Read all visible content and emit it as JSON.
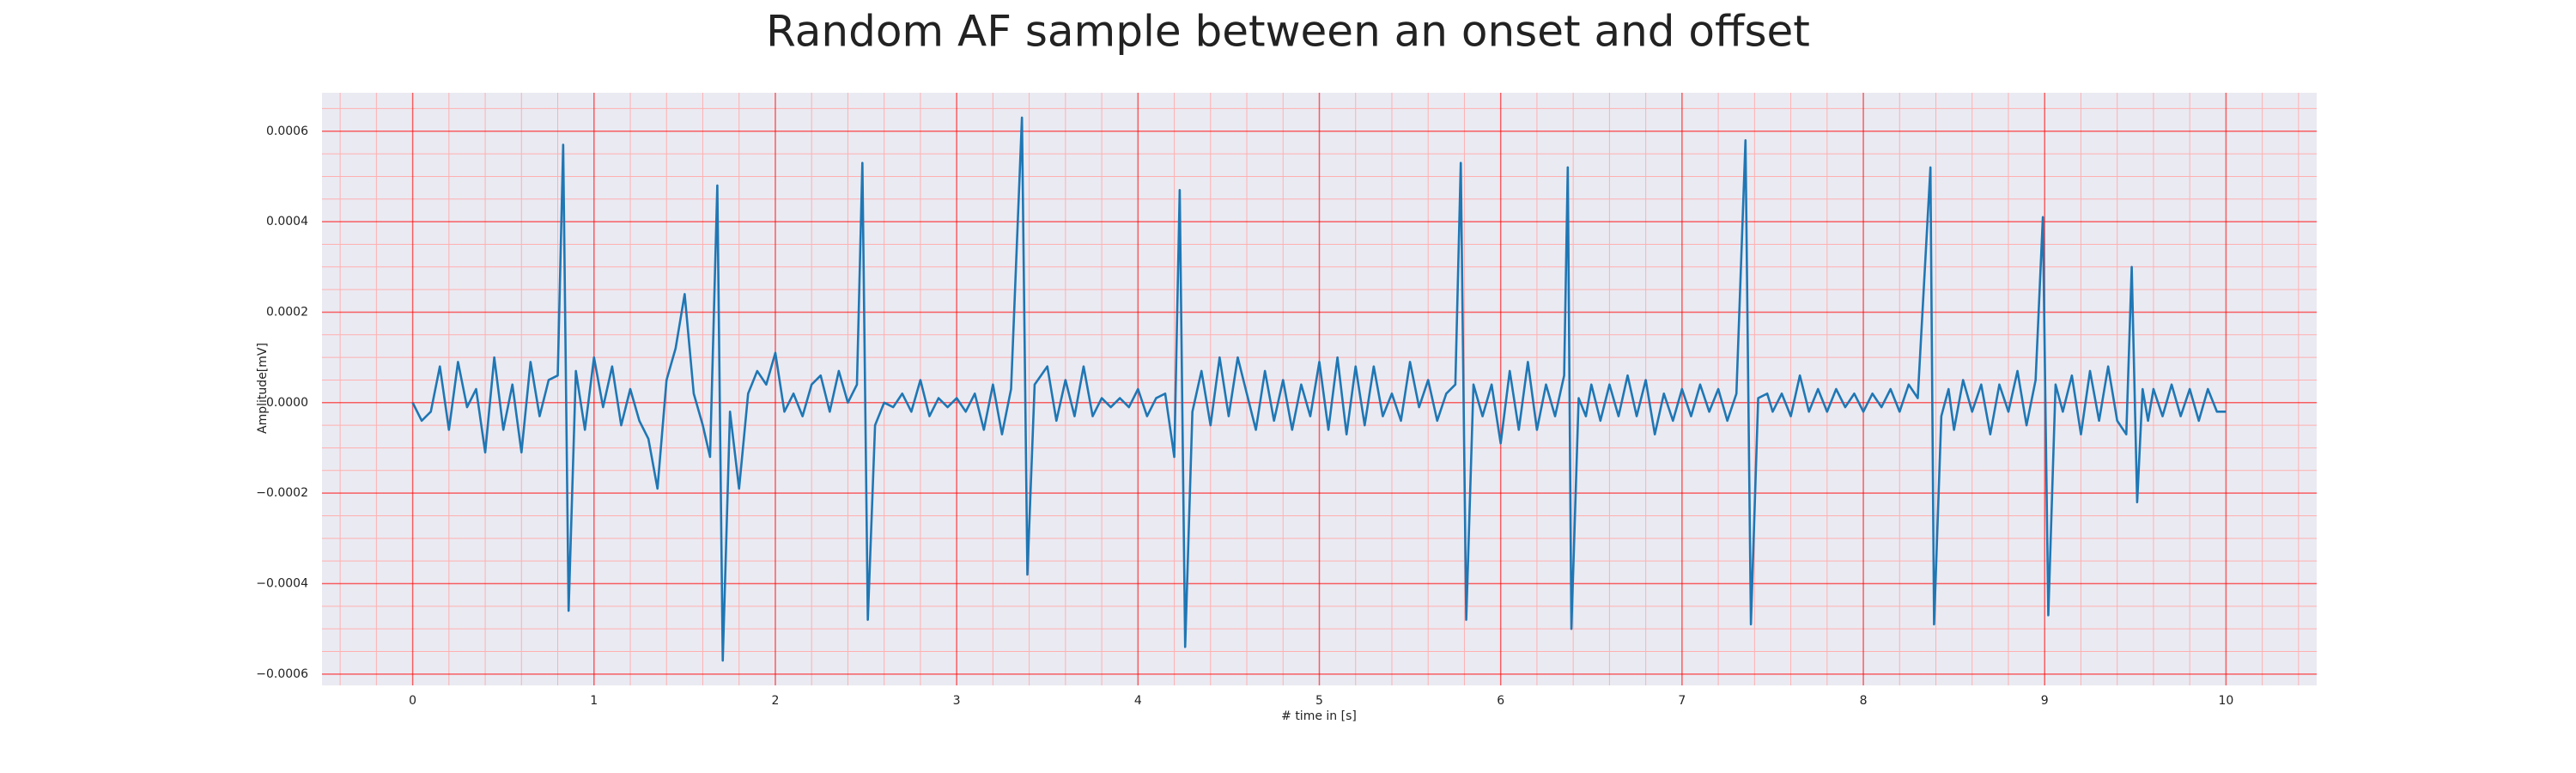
{
  "chart_data": {
    "type": "line",
    "title": "Random AF sample between an onset and offset",
    "xlabel": "# time in [s]",
    "ylabel": "Amplitude[mV]",
    "xlim": [
      -0.5,
      10.5
    ],
    "ylim": [
      -0.000625,
      0.000685
    ],
    "xticks": [
      0,
      1,
      2,
      3,
      4,
      5,
      6,
      7,
      8,
      9,
      10
    ],
    "yticks": [
      {
        "value": -0.0006,
        "label": "−0.0006"
      },
      {
        "value": -0.0004,
        "label": "−0.0004"
      },
      {
        "value": -0.0002,
        "label": "−0.0002"
      },
      {
        "value": 0,
        "label": "0.0000"
      },
      {
        "value": 0.0002,
        "label": "0.0002"
      },
      {
        "value": 0.0004,
        "label": "0.0004"
      },
      {
        "value": 0.0006,
        "label": "0.0006"
      }
    ],
    "xminorticks": [
      -0.4,
      -0.2,
      0.2,
      0.4,
      0.6,
      0.8,
      1.2,
      1.4,
      1.6,
      1.8,
      2.2,
      2.4,
      2.6,
      2.8,
      3.2,
      3.4,
      3.6,
      3.8,
      4.2,
      4.4,
      4.6,
      4.8,
      5.2,
      5.4,
      5.6,
      5.8,
      6.2,
      6.4,
      6.6,
      6.8,
      7.2,
      7.4,
      7.6,
      7.8,
      8.2,
      8.4,
      8.6,
      8.8,
      9.2,
      9.4,
      9.6,
      9.8,
      10.2,
      10.4
    ],
    "yminorticks": [
      -0.00055,
      -0.0005,
      -0.00045,
      -0.00035,
      -0.0003,
      -0.00025,
      -0.00015,
      -0.0001,
      -5e-05,
      5e-05,
      0.0001,
      0.00015,
      0.00025,
      0.0003,
      0.00035,
      0.00045,
      0.0005,
      0.00055,
      0.00065
    ],
    "grid": true,
    "grid_color": "#ff0000",
    "minor_grid_color": "#ffb0b0",
    "background": "#eaeaf2",
    "series": [
      {
        "color": "#1f77b4",
        "x": [
          0,
          0.05,
          0.1,
          0.15,
          0.2,
          0.25,
          0.3,
          0.35,
          0.4,
          0.45,
          0.5,
          0.55,
          0.6,
          0.65,
          0.7,
          0.75,
          0.8,
          0.83,
          0.86,
          0.9,
          0.95,
          1.0,
          1.05,
          1.1,
          1.15,
          1.2,
          1.25,
          1.3,
          1.35,
          1.4,
          1.45,
          1.5,
          1.55,
          1.6,
          1.64,
          1.68,
          1.71,
          1.75,
          1.8,
          1.85,
          1.9,
          1.95,
          2.0,
          2.05,
          2.1,
          2.15,
          2.2,
          2.25,
          2.3,
          2.35,
          2.4,
          2.45,
          2.48,
          2.51,
          2.55,
          2.6,
          2.65,
          2.7,
          2.75,
          2.8,
          2.85,
          2.9,
          2.95,
          3.0,
          3.05,
          3.1,
          3.15,
          3.2,
          3.25,
          3.3,
          3.36,
          3.39,
          3.43,
          3.5,
          3.55,
          3.6,
          3.65,
          3.7,
          3.75,
          3.8,
          3.85,
          3.9,
          3.95,
          4.0,
          4.05,
          4.1,
          4.15,
          4.2,
          4.23,
          4.26,
          4.3,
          4.35,
          4.4,
          4.45,
          4.5,
          4.55,
          4.6,
          4.65,
          4.7,
          4.75,
          4.8,
          4.85,
          4.9,
          4.95,
          5.0,
          5.05,
          5.1,
          5.15,
          5.2,
          5.25,
          5.3,
          5.35,
          5.4,
          5.45,
          5.5,
          5.55,
          5.6,
          5.65,
          5.7,
          5.75,
          5.78,
          5.81,
          5.85,
          5.9,
          5.95,
          6.0,
          6.05,
          6.1,
          6.15,
          6.2,
          6.25,
          6.3,
          6.35,
          6.37,
          6.39,
          6.43,
          6.47,
          6.5,
          6.55,
          6.6,
          6.65,
          6.7,
          6.75,
          6.8,
          6.85,
          6.9,
          6.95,
          7.0,
          7.05,
          7.1,
          7.15,
          7.2,
          7.25,
          7.3,
          7.35,
          7.38,
          7.42,
          7.47,
          7.5,
          7.55,
          7.6,
          7.65,
          7.7,
          7.75,
          7.8,
          7.85,
          7.9,
          7.95,
          8.0,
          8.05,
          8.1,
          8.15,
          8.2,
          8.25,
          8.3,
          8.37,
          8.39,
          8.43,
          8.47,
          8.5,
          8.55,
          8.6,
          8.65,
          8.7,
          8.75,
          8.8,
          8.85,
          8.9,
          8.95,
          8.99,
          9.02,
          9.06,
          9.1,
          9.15,
          9.2,
          9.25,
          9.3,
          9.35,
          9.4,
          9.45,
          9.48,
          9.51,
          9.54,
          9.57,
          9.6,
          9.65,
          9.7,
          9.75,
          9.8,
          9.85,
          9.9,
          9.95,
          10.0
        ],
        "values": [
          0,
          -4e-05,
          -2e-05,
          8e-05,
          -6e-05,
          9e-05,
          -1e-05,
          3e-05,
          -0.00011,
          0.0001,
          -6e-05,
          4e-05,
          -0.00011,
          9e-05,
          -3e-05,
          5e-05,
          6e-05,
          0.00057,
          -0.00046,
          7e-05,
          -6e-05,
          0.0001,
          -1e-05,
          8e-05,
          -5e-05,
          3e-05,
          -4e-05,
          -8e-05,
          -0.00019,
          5e-05,
          0.00012,
          0.00024,
          2e-05,
          -5e-05,
          -0.00012,
          0.00048,
          -0.00057,
          -2e-05,
          -0.00019,
          2e-05,
          7e-05,
          4e-05,
          0.00011,
          -2e-05,
          2e-05,
          -3e-05,
          4e-05,
          6e-05,
          -2e-05,
          7e-05,
          0,
          4e-05,
          0.00053,
          -0.00048,
          -5e-05,
          0,
          -1e-05,
          2e-05,
          -2e-05,
          5e-05,
          -3e-05,
          1e-05,
          -1e-05,
          1e-05,
          -2e-05,
          2e-05,
          -6e-05,
          4e-05,
          -7e-05,
          3e-05,
          0.00063,
          -0.00038,
          4e-05,
          8e-05,
          -4e-05,
          5e-05,
          -3e-05,
          8e-05,
          -3e-05,
          1e-05,
          -1e-05,
          1e-05,
          -1e-05,
          3e-05,
          -3e-05,
          1e-05,
          2e-05,
          -0.00012,
          0.00047,
          -0.00054,
          -2e-05,
          7e-05,
          -5e-05,
          0.0001,
          -3e-05,
          0.0001,
          2e-05,
          -6e-05,
          7e-05,
          -4e-05,
          5e-05,
          -6e-05,
          4e-05,
          -3e-05,
          9e-05,
          -6e-05,
          0.0001,
          -7e-05,
          8e-05,
          -5e-05,
          8e-05,
          -3e-05,
          2e-05,
          -4e-05,
          9e-05,
          -1e-05,
          5e-05,
          -4e-05,
          2e-05,
          4e-05,
          0.00053,
          -0.00048,
          4e-05,
          -3e-05,
          4e-05,
          -9e-05,
          7e-05,
          -6e-05,
          9e-05,
          -6e-05,
          4e-05,
          -3e-05,
          6e-05,
          0.00052,
          -0.0005,
          1e-05,
          -3e-05,
          4e-05,
          -4e-05,
          4e-05,
          -3e-05,
          6e-05,
          -3e-05,
          5e-05,
          -7e-05,
          2e-05,
          -4e-05,
          3e-05,
          -3e-05,
          4e-05,
          -2e-05,
          3e-05,
          -4e-05,
          2e-05,
          0.00058,
          -0.00049,
          1e-05,
          2e-05,
          -2e-05,
          2e-05,
          -3e-05,
          6e-05,
          -2e-05,
          3e-05,
          -2e-05,
          3e-05,
          -1e-05,
          2e-05,
          -2e-05,
          2e-05,
          -1e-05,
          3e-05,
          -2e-05,
          4e-05,
          1e-05,
          0.00052,
          -0.00049,
          -3e-05,
          3e-05,
          -6e-05,
          5e-05,
          -2e-05,
          4e-05,
          -7e-05,
          4e-05,
          -2e-05,
          7e-05,
          -5e-05,
          5e-05,
          0.00041,
          -0.00047,
          4e-05,
          -2e-05,
          6e-05,
          -7e-05,
          7e-05,
          -4e-05,
          8e-05,
          -4e-05,
          -7e-05,
          0.0003,
          -0.00022,
          3e-05,
          -4e-05,
          3e-05,
          -3e-05,
          4e-05,
          -3e-05,
          3e-05,
          -4e-05,
          3e-05,
          -2e-05,
          -2e-05
        ]
      }
    ]
  }
}
